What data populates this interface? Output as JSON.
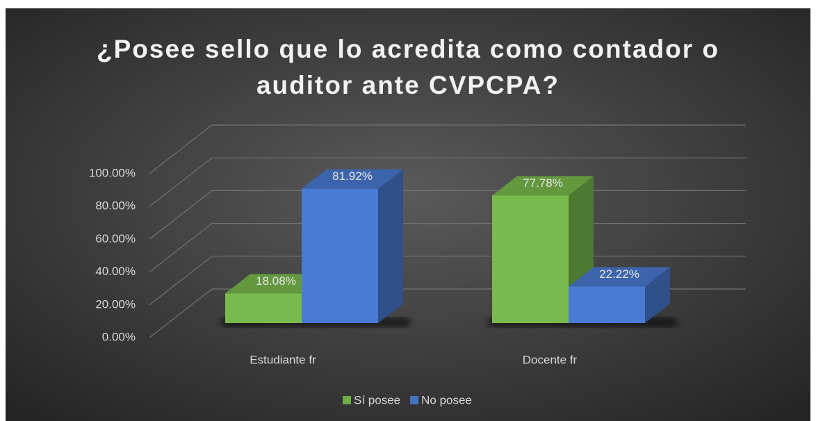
{
  "chart_data": {
    "type": "bar3d",
    "title": "¿Posee sello que lo acredita como contador o auditor ante CVPCPA?",
    "categories": [
      "Estudiante fr",
      "Docente fr"
    ],
    "series": [
      {
        "name": "Sí posee",
        "color": "#70ad47",
        "values": [
          18.08,
          77.78
        ],
        "value_labels": [
          "18.08%",
          "77.78%"
        ]
      },
      {
        "name": "No posee",
        "color": "#4472c4",
        "values": [
          81.92,
          22.22
        ],
        "value_labels": [
          "81.92%",
          "22.22%"
        ]
      }
    ],
    "ylim": [
      0,
      100
    ],
    "yticks": [
      {
        "value": 0,
        "label": "0.00%"
      },
      {
        "value": 20,
        "label": "20.00%"
      },
      {
        "value": 40,
        "label": "40.00%"
      },
      {
        "value": 60,
        "label": "60.00%"
      },
      {
        "value": 80,
        "label": "80.00%"
      },
      {
        "value": 100,
        "label": "100.00%"
      }
    ],
    "grid": true,
    "legend": "bottom"
  }
}
